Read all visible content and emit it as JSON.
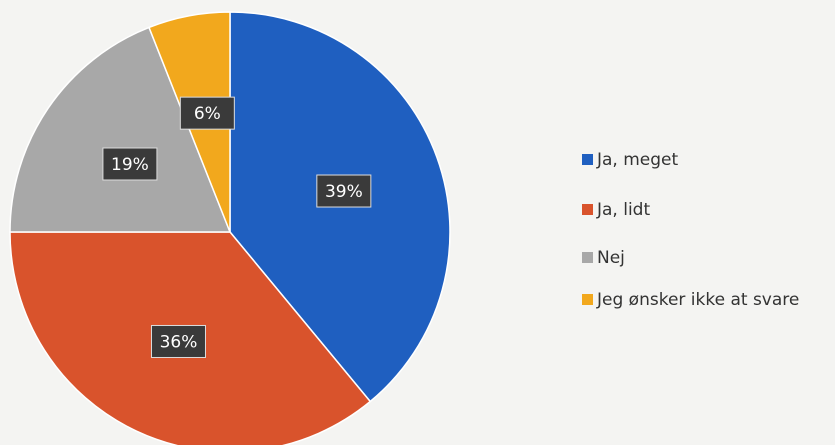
{
  "chart_data": {
    "type": "pie",
    "categories": [
      "Ja, meget",
      "Ja, lidt",
      "Nej",
      "Jeg ønsker ikke at svare"
    ],
    "values": [
      39,
      36,
      19,
      6
    ],
    "value_labels": [
      "39%",
      "36%",
      "19%",
      "6%"
    ],
    "colors": [
      "#1f5fc0",
      "#d9532c",
      "#a8a8a8",
      "#f2a81d"
    ],
    "legend": "right"
  }
}
